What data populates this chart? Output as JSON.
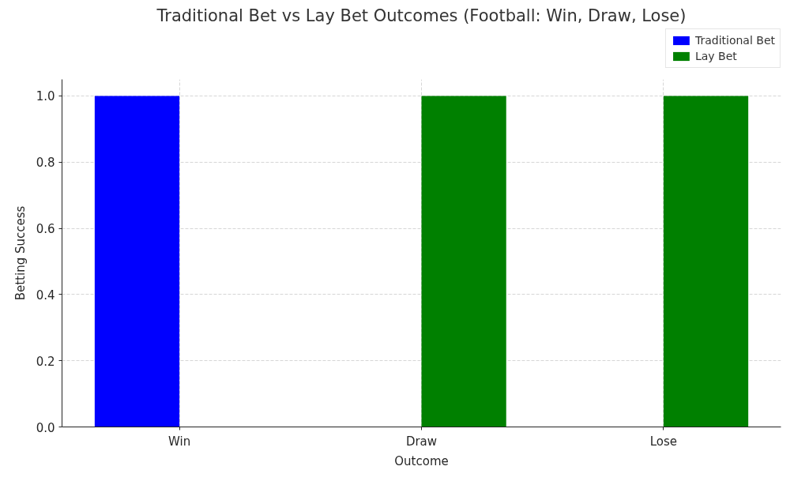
{
  "chart_data": {
    "type": "bar",
    "title": "Traditional Bet vs Lay Bet Outcomes (Football: Win, Draw, Lose)",
    "xlabel": "Outcome",
    "ylabel": "Betting Success",
    "categories": [
      "Win",
      "Draw",
      "Lose"
    ],
    "series": [
      {
        "name": "Traditional Bet",
        "color": "#0000ff",
        "values": [
          1,
          0,
          0
        ]
      },
      {
        "name": "Lay Bet",
        "color": "#008000",
        "values": [
          0,
          1,
          1
        ]
      }
    ],
    "ylim": [
      0,
      1.05
    ],
    "yticks": [
      {
        "value": 0,
        "label": "0.0"
      },
      0.2,
      0.4,
      0.6,
      0.8,
      {
        "value": 1,
        "label": "1.0"
      }
    ],
    "grid": true,
    "legend": "top right"
  }
}
